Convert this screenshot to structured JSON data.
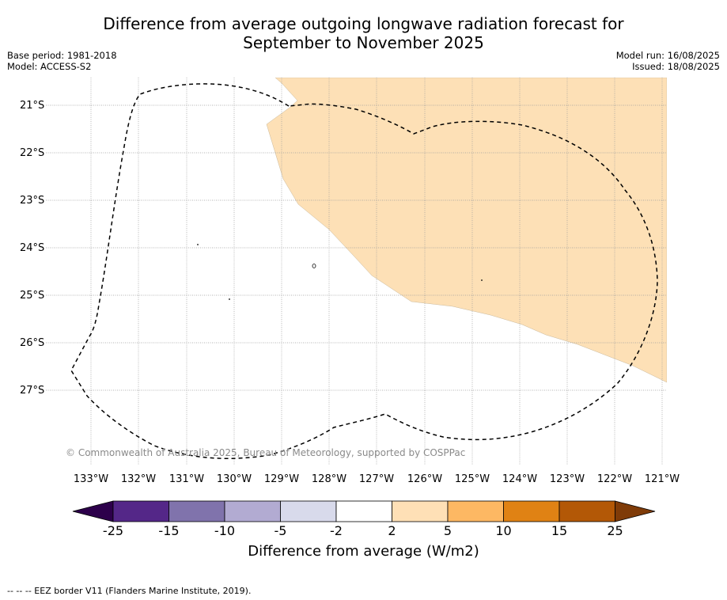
{
  "header": {
    "title_line1": "Difference from average outgoing longwave radiation forecast for",
    "title_line2": "September to November 2025",
    "base_period": "Base period: 1981-2018",
    "model": "Model: ACCESS-S2",
    "model_run": "Model run: 16/08/2025",
    "issued": "Issued: 18/08/2025"
  },
  "map": {
    "lat_labels": [
      "21°S",
      "22°S",
      "23°S",
      "24°S",
      "25°S",
      "26°S",
      "27°S"
    ],
    "lon_labels": [
      "133°W",
      "132°W",
      "131°W",
      "130°W",
      "129°W",
      "128°W",
      "127°W",
      "126°W",
      "125°W",
      "124°W",
      "123°W",
      "122°W",
      "121°W"
    ],
    "shaded_category": "2 to 5",
    "shaded_color": "#fde0b6",
    "gridlines": "dotted",
    "copyright": "© Commonwealth of Australia 2025, Bureau of Meteorology, supported by COSPPac"
  },
  "colorbar": {
    "ticks": [
      "-25",
      "-15",
      "-10",
      "-5",
      "-2",
      "2",
      "5",
      "10",
      "15",
      "25"
    ],
    "colors": [
      "#2d004b",
      "#542788",
      "#8073ac",
      "#b2abd2",
      "#d8daeb",
      "#ffffff",
      "#fee0b6",
      "#fdb863",
      "#e08214",
      "#b35806",
      "#7f3b08"
    ],
    "label": "Difference from average (W/m2)"
  },
  "footer": {
    "legend": "--  --  -- EEZ border V11 (Flanders Marine Institute, 2019)."
  }
}
